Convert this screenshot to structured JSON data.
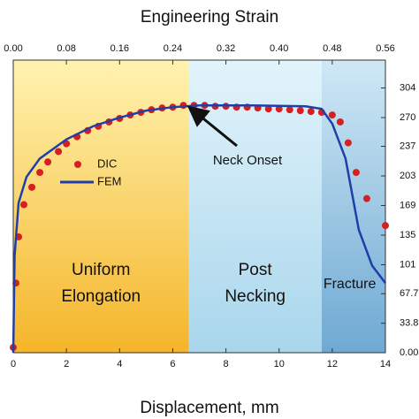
{
  "chart_data": {
    "type": "scatter-line",
    "title": "Engineering Strain",
    "xlabel": "Displacement, mm",
    "xlim": [
      0,
      14
    ],
    "xticks": [
      0,
      2,
      4,
      6,
      8,
      10,
      12,
      14
    ],
    "x2lim": [
      0,
      0.56
    ],
    "x2ticks": [
      {
        "value": 0,
        "label": "0.00"
      },
      0.08,
      0.16,
      0.24,
      0.32,
      {
        "value": 0.4,
        "label": "0.40"
      },
      0.48,
      0.56
    ],
    "y2lim": [
      0,
      336
    ],
    "y2ticks": [
      {
        "value": 0,
        "label": "0.00"
      },
      33.8,
      67.7,
      101,
      135,
      169,
      203,
      237,
      270,
      304
    ],
    "regions": [
      {
        "label": [
          "Uniform",
          "Elongation"
        ],
        "x": [
          0,
          6.6
        ]
      },
      {
        "label": [
          "Post",
          "Necking"
        ],
        "x": [
          6.6,
          11.6
        ]
      },
      {
        "label": [
          "Fracture"
        ],
        "x": [
          11.6,
          14
        ]
      }
    ],
    "annotation": {
      "text": "Neck Onset",
      "x": 6.6,
      "y": 284
    },
    "legend": "upper left",
    "series": [
      {
        "name": "DIC",
        "color": "#d42020",
        "axis": "y2",
        "x": [
          0,
          0.1,
          0.2,
          0.4,
          0.7,
          1,
          1.3,
          1.7,
          2,
          2.4,
          2.8,
          3.2,
          3.6,
          4,
          4.4,
          4.8,
          5.2,
          5.6,
          6,
          6.4,
          6.8,
          7.2,
          7.6,
          8,
          8.4,
          8.8,
          9.2,
          9.6,
          10,
          10.4,
          10.8,
          11.2,
          11.6,
          12,
          12.3,
          12.6,
          12.9,
          13.3,
          14
        ],
        "values": [
          6,
          80,
          133,
          170,
          190,
          207,
          219,
          231,
          240,
          248,
          255,
          260,
          265,
          269,
          273,
          276,
          279,
          281,
          282,
          284,
          284,
          284,
          283,
          283,
          282,
          282,
          281,
          280,
          280,
          279,
          278,
          277,
          276,
          273,
          265,
          241,
          207,
          177,
          146
        ]
      },
      {
        "name": "FEM",
        "color": "#1f3fa8",
        "axis": "y2",
        "x": [
          0,
          0.05,
          0.2,
          0.5,
          1,
          2,
          3,
          4,
          5,
          6,
          7,
          9,
          11,
          11.6,
          12,
          12.5,
          13,
          13.5,
          14
        ],
        "values": [
          0,
          111,
          172,
          202,
          223,
          245,
          260,
          270,
          278,
          282,
          284,
          284,
          283,
          280,
          263,
          223,
          141,
          100,
          80
        ]
      }
    ]
  }
}
